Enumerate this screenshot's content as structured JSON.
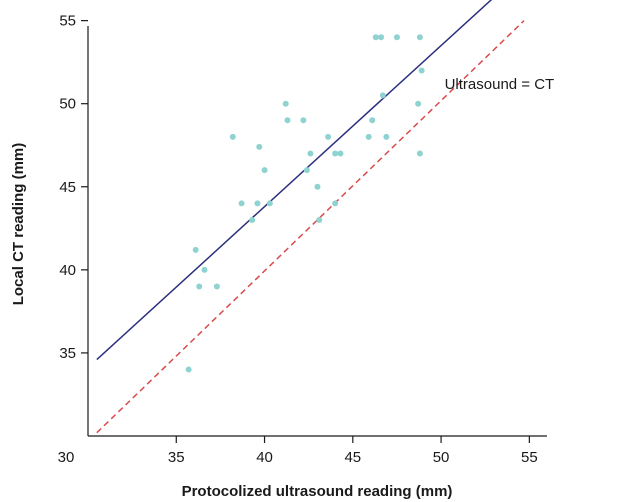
{
  "chart_data": {
    "type": "scatter",
    "title": "",
    "xlabel": "Protocolized ultrasound reading (mm)",
    "ylabel": "Local CT reading (mm)",
    "xlim": [
      30,
      56
    ],
    "ylim": [
      30,
      56
    ],
    "x_ticks": [
      30,
      35,
      40,
      45,
      50,
      55
    ],
    "y_ticks": [
      35,
      40,
      45,
      50,
      55
    ],
    "x_tick_labels": [
      "30",
      "35",
      "40",
      "45",
      "50",
      "55"
    ],
    "y_tick_labels": [
      "35",
      "40",
      "45",
      "50",
      "55"
    ],
    "grid": false,
    "points_color": "#8fd3d0",
    "points": [
      {
        "x": 35.7,
        "y": 34
      },
      {
        "x": 36.1,
        "y": 41.2
      },
      {
        "x": 36.3,
        "y": 39
      },
      {
        "x": 36.6,
        "y": 40
      },
      {
        "x": 37.3,
        "y": 39
      },
      {
        "x": 38.2,
        "y": 48
      },
      {
        "x": 38.7,
        "y": 44
      },
      {
        "x": 39.3,
        "y": 43
      },
      {
        "x": 39.6,
        "y": 44
      },
      {
        "x": 39.7,
        "y": 47.4
      },
      {
        "x": 40.0,
        "y": 46
      },
      {
        "x": 40.3,
        "y": 44
      },
      {
        "x": 41.2,
        "y": 50
      },
      {
        "x": 41.3,
        "y": 49
      },
      {
        "x": 42.2,
        "y": 49
      },
      {
        "x": 42.4,
        "y": 46
      },
      {
        "x": 42.6,
        "y": 47
      },
      {
        "x": 43.0,
        "y": 45
      },
      {
        "x": 43.1,
        "y": 43
      },
      {
        "x": 43.6,
        "y": 48
      },
      {
        "x": 44.0,
        "y": 47
      },
      {
        "x": 44.0,
        "y": 44
      },
      {
        "x": 44.3,
        "y": 47
      },
      {
        "x": 45.9,
        "y": 48
      },
      {
        "x": 46.1,
        "y": 49
      },
      {
        "x": 46.3,
        "y": 54
      },
      {
        "x": 46.6,
        "y": 54
      },
      {
        "x": 46.7,
        "y": 50.5
      },
      {
        "x": 46.9,
        "y": 48
      },
      {
        "x": 47.5,
        "y": 54
      },
      {
        "x": 48.7,
        "y": 50
      },
      {
        "x": 48.8,
        "y": 54
      },
      {
        "x": 48.8,
        "y": 47
      },
      {
        "x": 48.9,
        "y": 52
      }
    ],
    "lines": [
      {
        "style": "solid",
        "color": "#2b2f7e",
        "from": [
          30.5,
          34.6
        ],
        "to": [
          53.2,
          56.6
        ]
      },
      {
        "name": "Ultrasound = CT",
        "style": "dashed",
        "color": "#d94a4a",
        "from": [
          30.5,
          30.2
        ],
        "to": [
          54.7,
          55
        ]
      }
    ],
    "annotation": {
      "text": "Ultrasound = CT",
      "x": 50.2,
      "y": 51.2
    }
  }
}
